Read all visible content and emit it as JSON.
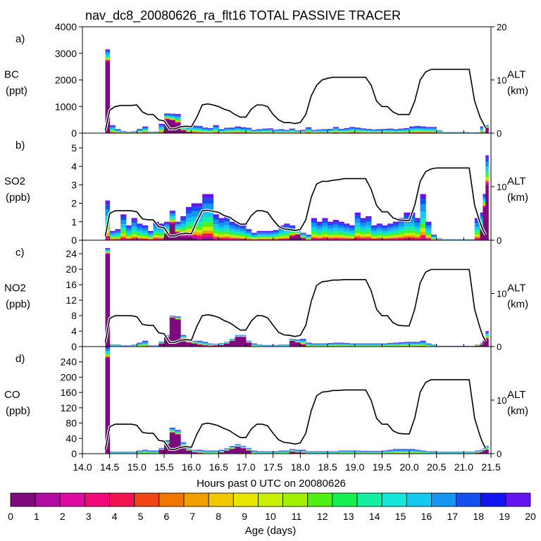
{
  "figure_title": "nav_dc8_20080626_ra_flt16 TOTAL PASSIVE TRACER",
  "xlabel": "Hours past 0 UTC on 20080626",
  "x_ticks": [
    "14.0",
    "14.5",
    "15.0",
    "15.5",
    "16.0",
    "16.5",
    "17.0",
    "17.5",
    "18.0",
    "18.5",
    "19.0",
    "19.5",
    "20.0",
    "20.5",
    "21.0",
    "21.5"
  ],
  "colorbar": {
    "label": "Age (days)",
    "ticks": [
      "0",
      "1",
      "2",
      "3",
      "4",
      "5",
      "6",
      "7",
      "8",
      "9",
      "10",
      "11",
      "12",
      "13",
      "14",
      "15",
      "16",
      "17",
      "18",
      "19",
      "20"
    ],
    "colors": [
      "#7e0a7e",
      "#b40aa4",
      "#dc0aa0",
      "#f00a78",
      "#f01450",
      "#f04614",
      "#f07800",
      "#f0a000",
      "#f0c800",
      "#e6e600",
      "#c8f000",
      "#a0f000",
      "#50f014",
      "#14f050",
      "#14f0a0",
      "#14e6dc",
      "#14c8f0",
      "#1496f0",
      "#1450f0",
      "#1414f0",
      "#6414f0"
    ]
  },
  "alt_axis": {
    "label_top": "ALT",
    "label_bottom": "(km)",
    "ticks": [
      "0",
      "10",
      "20"
    ]
  },
  "chart_data": [
    {
      "type": "area",
      "panel_letter": "a)",
      "ylabel_top": "BC",
      "ylabel_bottom": "(ppt)",
      "ylim": [
        0,
        4000
      ],
      "yticks": [
        "0",
        "1000",
        "2000",
        "3000",
        "4000"
      ],
      "ytick_values": [
        0,
        1000,
        2000,
        3000,
        4000
      ],
      "show_right_axis": true,
      "right_tick_labels": [
        "0",
        "10",
        "20"
      ],
      "right_tick_values": [
        0,
        10,
        20
      ],
      "alt_max": 20,
      "x": [
        14.42,
        14.5,
        14.6,
        14.7,
        14.8,
        14.9,
        15.0,
        15.1,
        15.2,
        15.3,
        15.4,
        15.5,
        15.6,
        15.7,
        15.8,
        15.9,
        16.0,
        16.1,
        16.2,
        16.3,
        16.4,
        16.5,
        16.6,
        16.7,
        16.8,
        16.9,
        17.0,
        17.1,
        17.2,
        17.3,
        17.4,
        17.5,
        17.6,
        17.7,
        17.8,
        17.9,
        18.0,
        18.1,
        18.2,
        18.3,
        18.4,
        18.5,
        18.6,
        18.7,
        18.8,
        18.9,
        19.0,
        19.1,
        19.2,
        19.3,
        19.4,
        19.5,
        19.6,
        19.7,
        19.8,
        19.9,
        20.0,
        20.1,
        20.2,
        20.3,
        20.4,
        20.5,
        20.6,
        20.7,
        20.8,
        20.9,
        21.0,
        21.1,
        21.2,
        21.3,
        21.35,
        21.4
      ],
      "total": [
        3150,
        300,
        150,
        80,
        50,
        70,
        160,
        250,
        50,
        60,
        350,
        740,
        730,
        720,
        280,
        250,
        280,
        270,
        210,
        190,
        300,
        150,
        200,
        210,
        250,
        220,
        200,
        120,
        150,
        170,
        180,
        130,
        150,
        120,
        170,
        100,
        120,
        220,
        120,
        140,
        150,
        160,
        230,
        160,
        190,
        230,
        210,
        180,
        160,
        140,
        150,
        160,
        170,
        150,
        170,
        190,
        250,
        270,
        250,
        230,
        230,
        100,
        40,
        40,
        40,
        40,
        40,
        20,
        30,
        250,
        60,
        300
      ],
      "young": [
        2700,
        0,
        0,
        0,
        0,
        0,
        0,
        0,
        0,
        0,
        0,
        520,
        480,
        380,
        100,
        30,
        20,
        0,
        0,
        0,
        0,
        0,
        0,
        0,
        0,
        0,
        0,
        0,
        0,
        0,
        0,
        0,
        0,
        0,
        0,
        0,
        0,
        0,
        0,
        0,
        0,
        0,
        0,
        0,
        0,
        0,
        0,
        0,
        0,
        0,
        0,
        0,
        0,
        0,
        0,
        0,
        0,
        0,
        0,
        0,
        0,
        0,
        0,
        0,
        0,
        0,
        0,
        0,
        0,
        0,
        0,
        200
      ],
      "alt_km": [
        0.5,
        4.3,
        5.0,
        5.2,
        5.2,
        5.2,
        5.3,
        4.0,
        3.5,
        3.5,
        2.5,
        2.3,
        0.8,
        0.8,
        1.2,
        1.3,
        1.2,
        3.0,
        5.3,
        5.5,
        5.3,
        5.0,
        4.5,
        4.2,
        3.5,
        3.0,
        3.0,
        4.5,
        5.3,
        5.3,
        5.0,
        3.5,
        2.5,
        2.0,
        2.0,
        1.8,
        2.0,
        3.5,
        7.0,
        9.0,
        10.0,
        10.3,
        10.5,
        10.5,
        10.5,
        10.5,
        10.5,
        10.5,
        10.5,
        9.0,
        6.0,
        5.0,
        5.0,
        4.0,
        3.5,
        3.5,
        3.5,
        6.0,
        10.0,
        11.5,
        12.0,
        12.0,
        12.0,
        12.0,
        12.0,
        12.0,
        12.0,
        12.0,
        6.0,
        3.0,
        2.0,
        1.0
      ]
    },
    {
      "type": "area",
      "panel_letter": "b)",
      "ylabel_top": "SO2",
      "ylabel_bottom": "(ppb)",
      "ylim": [
        0,
        5.8
      ],
      "yticks": [
        "0",
        "1",
        "2",
        "3",
        "4",
        "5"
      ],
      "ytick_values": [
        0,
        1,
        2,
        3,
        4,
        5
      ],
      "show_right_axis": true,
      "right_tick_labels": [
        "0",
        "10"
      ],
      "right_tick_values": [
        0,
        10
      ],
      "alt_max": 20,
      "x": [
        14.42,
        14.5,
        14.6,
        14.7,
        14.8,
        14.9,
        15.0,
        15.1,
        15.2,
        15.3,
        15.4,
        15.5,
        15.6,
        15.7,
        15.8,
        15.9,
        16.0,
        16.1,
        16.2,
        16.3,
        16.4,
        16.5,
        16.6,
        16.7,
        16.8,
        16.9,
        17.0,
        17.1,
        17.2,
        17.3,
        17.4,
        17.5,
        17.6,
        17.7,
        17.8,
        17.9,
        18.0,
        18.1,
        18.2,
        18.3,
        18.4,
        18.5,
        18.6,
        18.7,
        18.8,
        18.9,
        19.0,
        19.1,
        19.2,
        19.3,
        19.4,
        19.5,
        19.6,
        19.7,
        19.8,
        19.9,
        20.0,
        20.1,
        20.2,
        20.3,
        20.4,
        20.5,
        20.6,
        20.7,
        20.8,
        20.9,
        21.0,
        21.1,
        21.2,
        21.3,
        21.35,
        21.4
      ],
      "total": [
        2.15,
        0.5,
        0.6,
        1.4,
        0.8,
        1.2,
        0.9,
        0.8,
        0.5,
        1.0,
        0.9,
        1.0,
        1.6,
        1.0,
        1.3,
        1.8,
        2.0,
        2.0,
        2.5,
        2.5,
        1.4,
        1.2,
        1.3,
        1.0,
        0.9,
        0.8,
        0.6,
        0.4,
        0.5,
        0.5,
        0.5,
        0.55,
        0.8,
        0.9,
        0.8,
        0.6,
        0.4,
        0.3,
        1.2,
        1.0,
        1.2,
        1.0,
        1.1,
        1.0,
        0.9,
        0.8,
        1.5,
        1.2,
        1.3,
        0.8,
        0.9,
        0.8,
        0.9,
        1.0,
        1.2,
        1.5,
        1.5,
        1.2,
        2.5,
        1.0,
        0.3,
        0.1,
        0.05,
        0.05,
        0.05,
        0.05,
        0.05,
        0.05,
        1.2,
        1.5,
        2.5,
        4.6
      ],
      "young": [
        0,
        0,
        0,
        0,
        0,
        0,
        0,
        0,
        0,
        0,
        0,
        0.3,
        0.9,
        0.4,
        0.2,
        0.2,
        0.1,
        0.05,
        0.1,
        0.1,
        0,
        0,
        0,
        0,
        0,
        0,
        0,
        0,
        0,
        0,
        0,
        0,
        0,
        0,
        0.2,
        0.3,
        0.1,
        0,
        0,
        0,
        0,
        0,
        0,
        0,
        0,
        0,
        0,
        0,
        0,
        0,
        0,
        0,
        0,
        0,
        0,
        0,
        0,
        0,
        0,
        0,
        0,
        0,
        0,
        0,
        0,
        0,
        0,
        0,
        0,
        0.5,
        1.8,
        3.0
      ],
      "alt_km": [
        0.8,
        5.0,
        5.5,
        5.5,
        5.5,
        5.5,
        5.3,
        4.0,
        3.8,
        3.8,
        2.5,
        2.3,
        0.8,
        0.8,
        1.2,
        1.3,
        1.2,
        3.5,
        5.5,
        5.6,
        5.4,
        5.2,
        4.6,
        4.3,
        3.6,
        3.0,
        3.0,
        4.6,
        5.5,
        5.5,
        5.2,
        3.8,
        2.6,
        2.1,
        2.0,
        1.8,
        2.0,
        3.8,
        8.0,
        10.5,
        11.0,
        11.0,
        11.2,
        11.3,
        11.5,
        11.5,
        11.5,
        11.5,
        11.5,
        9.5,
        6.5,
        5.3,
        5.3,
        4.2,
        3.8,
        3.7,
        3.7,
        6.5,
        11.0,
        12.8,
        13.3,
        13.5,
        13.5,
        13.5,
        13.5,
        13.5,
        13.5,
        13.5,
        6.5,
        3.3,
        2.0,
        1.0
      ]
    },
    {
      "type": "area",
      "panel_letter": "c)",
      "ylabel_top": "NO2",
      "ylabel_bottom": "(ppb)",
      "ylim": [
        0,
        27.5
      ],
      "yticks": [
        "0",
        "4",
        "8",
        "12",
        "16",
        "20",
        "24"
      ],
      "ytick_values": [
        0,
        4,
        8,
        12,
        16,
        20,
        24
      ],
      "show_right_axis": true,
      "right_tick_labels": [
        "0",
        "10"
      ],
      "right_tick_values": [
        0,
        10
      ],
      "alt_max": 20,
      "x": [
        14.42,
        14.5,
        14.6,
        14.7,
        14.8,
        14.9,
        15.0,
        15.1,
        15.2,
        15.3,
        15.4,
        15.5,
        15.6,
        15.7,
        15.8,
        15.9,
        16.0,
        16.1,
        16.2,
        16.3,
        16.4,
        16.5,
        16.6,
        16.7,
        16.8,
        16.9,
        17.0,
        17.1,
        17.2,
        17.3,
        17.4,
        17.5,
        17.6,
        17.7,
        17.8,
        17.9,
        18.0,
        18.1,
        18.2,
        18.3,
        18.4,
        18.5,
        18.6,
        18.7,
        18.8,
        18.9,
        19.0,
        19.1,
        19.2,
        19.3,
        19.4,
        19.5,
        19.6,
        19.7,
        19.8,
        19.9,
        20.0,
        20.1,
        20.2,
        20.3,
        20.4,
        20.5,
        20.6,
        20.7,
        20.8,
        20.9,
        21.0,
        21.1,
        21.2,
        21.3,
        21.35,
        21.4
      ],
      "total": [
        25.5,
        0.5,
        0.5,
        0.3,
        0.3,
        0.5,
        1.0,
        1.5,
        0.3,
        0.3,
        1.3,
        3.0,
        8.0,
        7.8,
        3.0,
        2.0,
        1.5,
        1.5,
        1.2,
        0.8,
        0.7,
        0.9,
        1.2,
        2.0,
        3.0,
        3.0,
        1.5,
        0.8,
        0.5,
        0.4,
        0.4,
        0.4,
        0.5,
        0.5,
        2.0,
        1.8,
        2.0,
        1.0,
        0.8,
        0.8,
        0.8,
        0.9,
        1.0,
        1.0,
        0.9,
        0.8,
        0.8,
        0.8,
        0.8,
        0.8,
        0.8,
        0.8,
        0.9,
        1.0,
        1.1,
        1.2,
        1.2,
        1.2,
        1.5,
        0.8,
        0.5,
        0.2,
        0.2,
        0.2,
        0.2,
        0.2,
        0.2,
        0.2,
        0.5,
        1.0,
        2.0,
        4.0
      ],
      "young": [
        24,
        0,
        0,
        0,
        0,
        0,
        0,
        0,
        0,
        0,
        0.8,
        2.5,
        7.5,
        7.0,
        2.0,
        1.0,
        0.8,
        0.5,
        0.3,
        0.2,
        0.3,
        0.4,
        0.8,
        1.5,
        2.5,
        2.5,
        1.0,
        0,
        0,
        0,
        0,
        0,
        0,
        0,
        1.5,
        1.0,
        0.5,
        0,
        0,
        0,
        0,
        0,
        0,
        0,
        0,
        0,
        0,
        0,
        0,
        0,
        0,
        0,
        0,
        0,
        0,
        0,
        0,
        0,
        0,
        0,
        0,
        0,
        0,
        0,
        0,
        0,
        0,
        0,
        0.2,
        0.5,
        1.5,
        2.0
      ],
      "alt_km": [
        0.8,
        5.3,
        5.8,
        5.8,
        5.8,
        5.8,
        5.6,
        4.2,
        4.0,
        4.0,
        2.6,
        2.4,
        0.8,
        0.8,
        1.2,
        1.3,
        1.2,
        3.8,
        5.8,
        6.0,
        5.8,
        5.5,
        4.9,
        4.5,
        3.8,
        3.1,
        3.1,
        4.8,
        5.8,
        5.8,
        5.4,
        4.0,
        2.7,
        2.2,
        2.1,
        1.9,
        2.1,
        4.0,
        8.5,
        11.5,
        12.2,
        12.3,
        12.5,
        12.5,
        12.6,
        12.6,
        12.6,
        12.6,
        12.6,
        10.5,
        7.0,
        5.8,
        5.8,
        4.5,
        4.0,
        3.9,
        3.9,
        7.0,
        12.0,
        14.0,
        14.5,
        14.5,
        14.5,
        14.5,
        14.5,
        14.5,
        14.5,
        14.5,
        7.0,
        3.5,
        2.0,
        1.0
      ]
    },
    {
      "type": "area",
      "panel_letter": "d)",
      "ylabel_top": "CO",
      "ylabel_bottom": "(ppb)",
      "ylim": [
        0,
        280
      ],
      "yticks": [
        "0",
        "40",
        "80",
        "120",
        "160",
        "200",
        "240"
      ],
      "ytick_values": [
        0,
        40,
        80,
        120,
        160,
        200,
        240
      ],
      "show_right_axis": true,
      "right_tick_labels": [
        "0",
        "10"
      ],
      "right_tick_values": [
        0,
        10
      ],
      "alt_max": 20,
      "x": [
        14.42,
        14.5,
        14.6,
        14.7,
        14.8,
        14.9,
        15.0,
        15.1,
        15.2,
        15.3,
        15.4,
        15.5,
        15.6,
        15.7,
        15.8,
        15.9,
        16.0,
        16.1,
        16.2,
        16.3,
        16.4,
        16.5,
        16.6,
        16.7,
        16.8,
        16.9,
        17.0,
        17.1,
        17.2,
        17.3,
        17.4,
        17.5,
        17.6,
        17.7,
        17.8,
        17.9,
        18.0,
        18.1,
        18.2,
        18.3,
        18.4,
        18.5,
        18.6,
        18.7,
        18.8,
        18.9,
        19.0,
        19.1,
        19.2,
        19.3,
        19.4,
        19.5,
        19.6,
        19.7,
        19.8,
        19.9,
        20.0,
        20.1,
        20.2,
        20.3,
        20.4,
        20.5,
        20.6,
        20.7,
        20.8,
        20.9,
        21.0,
        21.1,
        21.2,
        21.3,
        21.35,
        21.4
      ],
      "total": [
        280,
        5,
        5,
        5,
        5,
        5,
        8,
        10,
        8,
        8,
        15,
        35,
        68,
        62,
        30,
        15,
        10,
        10,
        8,
        8,
        8,
        10,
        14,
        20,
        25,
        20,
        15,
        8,
        6,
        6,
        6,
        6,
        8,
        8,
        12,
        10,
        10,
        6,
        6,
        6,
        6,
        6,
        6,
        8,
        8,
        8,
        8,
        7,
        7,
        7,
        7,
        8,
        10,
        12,
        12,
        12,
        12,
        10,
        8,
        6,
        6,
        5,
        5,
        5,
        5,
        5,
        5,
        5,
        8,
        10,
        15,
        20
      ],
      "young": [
        250,
        0,
        0,
        0,
        0,
        0,
        0,
        0,
        0,
        0,
        10,
        25,
        55,
        50,
        20,
        8,
        4,
        2,
        0,
        0,
        0,
        3,
        8,
        12,
        18,
        14,
        8,
        0,
        0,
        0,
        0,
        0,
        0,
        0,
        5,
        3,
        2,
        0,
        0,
        0,
        0,
        0,
        0,
        0,
        0,
        0,
        0,
        0,
        0,
        0,
        0,
        0,
        0,
        0,
        0,
        0,
        0,
        0,
        0,
        0,
        0,
        0,
        0,
        0,
        0,
        0,
        0,
        0,
        2,
        4,
        8,
        10
      ],
      "alt_km": [
        0.8,
        5.0,
        5.5,
        5.5,
        5.5,
        5.5,
        5.3,
        4.0,
        3.8,
        3.8,
        2.5,
        2.3,
        0.8,
        0.8,
        1.2,
        1.3,
        1.2,
        3.6,
        5.5,
        5.7,
        5.5,
        5.2,
        4.7,
        4.3,
        3.6,
        3.0,
        3.0,
        4.6,
        5.5,
        5.5,
        5.2,
        3.8,
        2.6,
        2.1,
        2.0,
        1.8,
        2.0,
        3.8,
        8.0,
        10.8,
        11.5,
        11.6,
        11.8,
        11.8,
        11.9,
        11.9,
        11.9,
        11.9,
        11.9,
        10.0,
        6.6,
        5.5,
        5.5,
        4.3,
        3.8,
        3.7,
        3.7,
        6.6,
        11.5,
        13.3,
        13.8,
        13.8,
        13.8,
        13.8,
        13.8,
        13.8,
        13.8,
        13.8,
        6.6,
        3.3,
        2.0,
        1.0
      ]
    }
  ]
}
